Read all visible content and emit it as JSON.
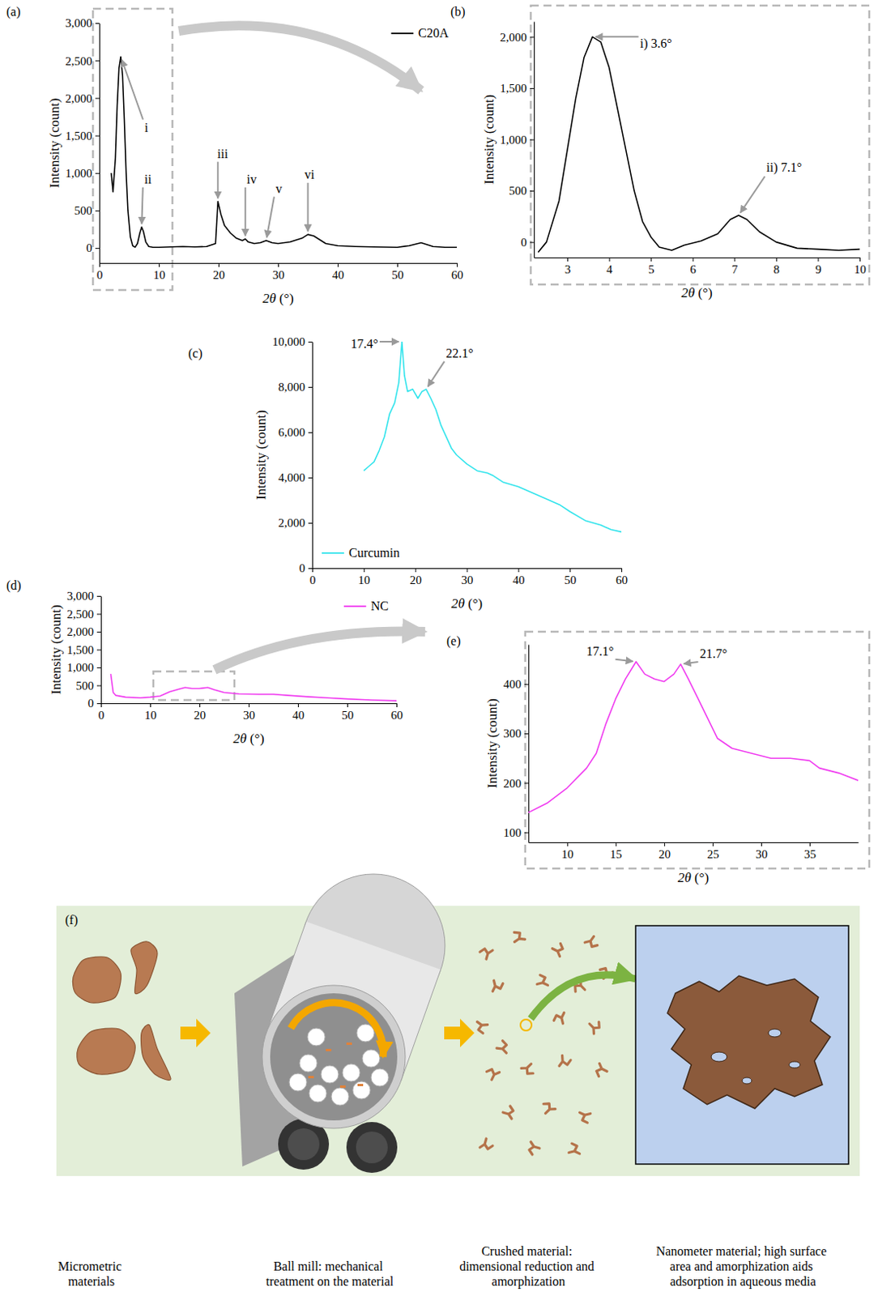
{
  "chart_data": [
    {
      "panel_label": "(a)",
      "type": "line",
      "x_label": "2θ (°)",
      "y_label": "Intensity (count)",
      "xlim": [
        0,
        60
      ],
      "xticks": [
        0,
        10,
        20,
        30,
        40,
        50,
        60
      ],
      "ylim": [
        -200,
        3000
      ],
      "yticks": [
        0,
        500,
        {
          "value": 1000,
          "label": "1,000"
        },
        {
          "value": 1500,
          "label": "1,500"
        },
        {
          "value": 2000,
          "label": "2,000"
        },
        {
          "value": 2500,
          "label": "2,500"
        },
        {
          "value": 3000,
          "label": "3,000"
        }
      ],
      "grid": false,
      "legend": "top-right",
      "x": [
        2,
        2.3,
        2.7,
        3.0,
        3.3,
        3.6,
        3.9,
        4.2,
        4.5,
        4.8,
        5.2,
        5.6,
        6.0,
        6.4,
        6.8,
        7.1,
        7.4,
        7.8,
        8.3,
        9,
        10,
        12,
        14,
        16,
        18,
        19.5,
        19.9,
        20.4,
        21,
        22,
        23,
        24,
        24.5,
        25,
        26,
        27,
        28,
        29,
        30,
        32,
        34,
        35,
        36,
        37,
        38,
        40,
        43,
        46,
        50,
        52,
        54,
        56,
        58,
        60
      ],
      "series": [
        {
          "name": "C20A",
          "color": "#000000",
          "values": [
            1000,
            750,
            1200,
            1900,
            2400,
            2550,
            2300,
            1700,
            1000,
            500,
            150,
            30,
            10,
            60,
            200,
            280,
            220,
            80,
            20,
            10,
            10,
            15,
            20,
            15,
            20,
            60,
            620,
            450,
            300,
            200,
            130,
            100,
            120,
            80,
            60,
            70,
            100,
            70,
            60,
            80,
            130,
            180,
            160,
            110,
            60,
            30,
            20,
            15,
            10,
            30,
            70,
            20,
            10,
            10
          ]
        }
      ],
      "annotations": [
        {
          "text": "i",
          "x": 3.6,
          "y": 2550
        },
        {
          "text": "ii",
          "x": 7.1,
          "y": 280
        },
        {
          "text": "iii",
          "x": 19.9,
          "y": 620
        },
        {
          "text": "iv",
          "x": 24.5,
          "y": 120
        },
        {
          "text": "v",
          "x": 28,
          "y": 100
        },
        {
          "text": "vi",
          "x": 35,
          "y": 180
        }
      ]
    },
    {
      "panel_label": "(b)",
      "type": "line",
      "x_label": "2θ (°)",
      "y_label": "Intensity (count)",
      "xlim": [
        2.2,
        10
      ],
      "xticks": [
        3,
        4,
        5,
        6,
        7,
        8,
        9,
        10
      ],
      "ylim": [
        -150,
        2150
      ],
      "yticks": [
        0,
        500,
        {
          "value": 1000,
          "label": "1,000"
        },
        {
          "value": 1500,
          "label": "1,500"
        },
        {
          "value": 2000,
          "label": "2,000"
        }
      ],
      "grid": false,
      "x": [
        2.3,
        2.5,
        2.8,
        3.0,
        3.2,
        3.4,
        3.6,
        3.8,
        4.0,
        4.2,
        4.4,
        4.6,
        4.8,
        5.0,
        5.2,
        5.5,
        5.8,
        6.2,
        6.6,
        6.9,
        7.1,
        7.3,
        7.6,
        8.0,
        8.5,
        9.0,
        9.5,
        10
      ],
      "series": [
        {
          "color": "#000000",
          "values": [
            -100,
            0,
            400,
            900,
            1400,
            1800,
            2000,
            1950,
            1700,
            1300,
            900,
            500,
            200,
            50,
            -50,
            -80,
            -30,
            10,
            80,
            220,
            260,
            220,
            100,
            0,
            -60,
            -70,
            -80,
            -70
          ]
        }
      ],
      "annotations": [
        {
          "text": "i) 3.6°",
          "x": 3.6,
          "y": 2000
        },
        {
          "text": "ii) 7.1°",
          "x": 7.1,
          "y": 260
        }
      ]
    },
    {
      "panel_label": "(c)",
      "type": "line",
      "x_label": "2θ (°)",
      "y_label": "Intensity (count)",
      "xlim": [
        0,
        60
      ],
      "xticks": [
        0,
        10,
        20,
        30,
        40,
        50,
        60
      ],
      "ylim": [
        0,
        10000
      ],
      "yticks": [
        0,
        {
          "value": 2000,
          "label": "2,000"
        },
        {
          "value": 4000,
          "label": "4,000"
        },
        {
          "value": 6000,
          "label": "6,000"
        },
        {
          "value": 8000,
          "label": "8,000"
        },
        {
          "value": 10000,
          "label": "10,000"
        }
      ],
      "grid": false,
      "legend": "bottom-left",
      "x": [
        10,
        11,
        12,
        13,
        14,
        15,
        16,
        16.8,
        17.4,
        17.9,
        18.5,
        19.5,
        20.5,
        21.3,
        22.1,
        23,
        24,
        25,
        26,
        27,
        28,
        30,
        32,
        34,
        35,
        37,
        40,
        43,
        46,
        48,
        50,
        53,
        56,
        58,
        60
      ],
      "series": [
        {
          "name": "Curcumin",
          "color": "#33e4ec",
          "values": [
            4300,
            4500,
            4700,
            5200,
            5800,
            6800,
            7300,
            8200,
            10000,
            8500,
            7800,
            7900,
            7500,
            7800,
            7900,
            7500,
            7000,
            6300,
            5800,
            5300,
            5000,
            4600,
            4300,
            4200,
            4100,
            3800,
            3600,
            3300,
            3000,
            2800,
            2500,
            2100,
            1900,
            1700,
            1600
          ]
        }
      ],
      "annotations": [
        {
          "text": "17.4°",
          "x": 17.4,
          "y": 10000
        },
        {
          "text": "22.1°",
          "x": 22.1,
          "y": 7900
        }
      ]
    },
    {
      "panel_label": "(d)",
      "type": "line",
      "x_label": "2θ (°)",
      "y_label": "Intensity (count)",
      "xlim": [
        0,
        60
      ],
      "xticks": [
        0,
        10,
        20,
        30,
        40,
        50,
        60
      ],
      "ylim": [
        0,
        3000
      ],
      "yticks": [
        0,
        500,
        {
          "value": 1000,
          "label": "1,000"
        },
        {
          "value": 1500,
          "label": "1,500"
        },
        {
          "value": 2000,
          "label": "2,000"
        },
        {
          "value": 2500,
          "label": "2,500"
        },
        {
          "value": 3000,
          "label": "3,000"
        }
      ],
      "grid": false,
      "legend": "top-right",
      "x": [
        2,
        2.5,
        3,
        5,
        8,
        10,
        12,
        14,
        16,
        17.1,
        18.5,
        20,
        21.7,
        23,
        25,
        28,
        32,
        35,
        38,
        42,
        46,
        50,
        55,
        60
      ],
      "series": [
        {
          "name": "NC",
          "color": "#f03cf0",
          "values": [
            820,
            300,
            220,
            170,
            150,
            170,
            200,
            320,
            400,
            440,
            410,
            410,
            440,
            380,
            300,
            260,
            250,
            250,
            220,
            180,
            150,
            120,
            90,
            70
          ]
        }
      ]
    },
    {
      "panel_label": "(e)",
      "type": "line",
      "x_label": "2θ (°)",
      "y_label": "Intensity (count)",
      "xlim": [
        6,
        40
      ],
      "xticks": [
        10,
        15,
        20,
        25,
        30,
        35
      ],
      "ylim": [
        80,
        480
      ],
      "yticks": [
        100,
        200,
        300,
        400
      ],
      "grid": false,
      "x": [
        6,
        8,
        10,
        12,
        13,
        14,
        15,
        16,
        17.1,
        18,
        19,
        20,
        21,
        21.7,
        22.5,
        23.5,
        24.5,
        25.5,
        27,
        29,
        31,
        33,
        35,
        36,
        38,
        40
      ],
      "series": [
        {
          "color": "#f03cf0",
          "values": [
            140,
            160,
            190,
            230,
            260,
            320,
            370,
            410,
            445,
            420,
            410,
            405,
            420,
            440,
            410,
            370,
            330,
            290,
            270,
            260,
            250,
            250,
            245,
            230,
            220,
            205
          ]
        }
      ],
      "annotations": [
        {
          "text": "17.1°",
          "x": 17.1,
          "y": 445
        },
        {
          "text": "21.7°",
          "x": 21.7,
          "y": 440
        }
      ]
    }
  ],
  "diagram": {
    "panel_label": "(f)",
    "captions": [
      "Micrometric materials",
      "Ball mill: mechanical treatment on the material",
      "Crushed material: dimensional reduction and amorphization",
      "Nanometer material; high surface area and amorphization aids adsorption in aqueous media"
    ]
  }
}
